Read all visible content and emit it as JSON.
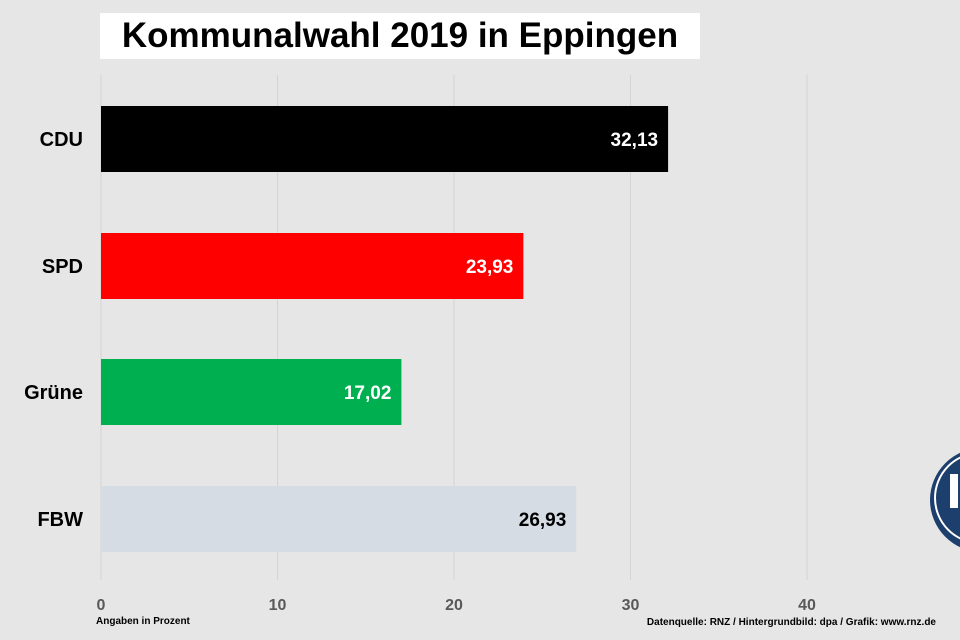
{
  "chart_data": {
    "type": "bar",
    "orientation": "horizontal",
    "title": "Kommunalwahl 2019 in Eppingen",
    "xlabel": "Angaben in Prozent",
    "ylabel": "",
    "xlim": [
      0,
      50
    ],
    "x_ticks": [
      0,
      10,
      20,
      30,
      40
    ],
    "x_tick_labels": [
      "0",
      "10",
      "20",
      "30",
      "40"
    ],
    "grid": "vertical",
    "categories": [
      "CDU",
      "SPD",
      "Grüne",
      "FBW"
    ],
    "values": [
      32.13,
      23.93,
      17.02,
      26.93
    ],
    "value_labels": [
      "32,13",
      "23,93",
      "17,02",
      "26,93"
    ],
    "colors": [
      "#000000",
      "#ff0000",
      "#00b050",
      "#d6dce4"
    ],
    "label_colors": [
      "#ffffff",
      "#ffffff",
      "#ffffff",
      "#000000"
    ],
    "source": "Datenquelle: RNZ / Hintergrundbild: dpa / Grafik: www.rnz.de"
  },
  "colors": {
    "background": "#e6e6e6",
    "gridline": "#d4d4d4",
    "tick_label": "#595959",
    "logo": "#1c3f6e"
  },
  "logo": {
    "icon": "rnz-logo-icon"
  }
}
